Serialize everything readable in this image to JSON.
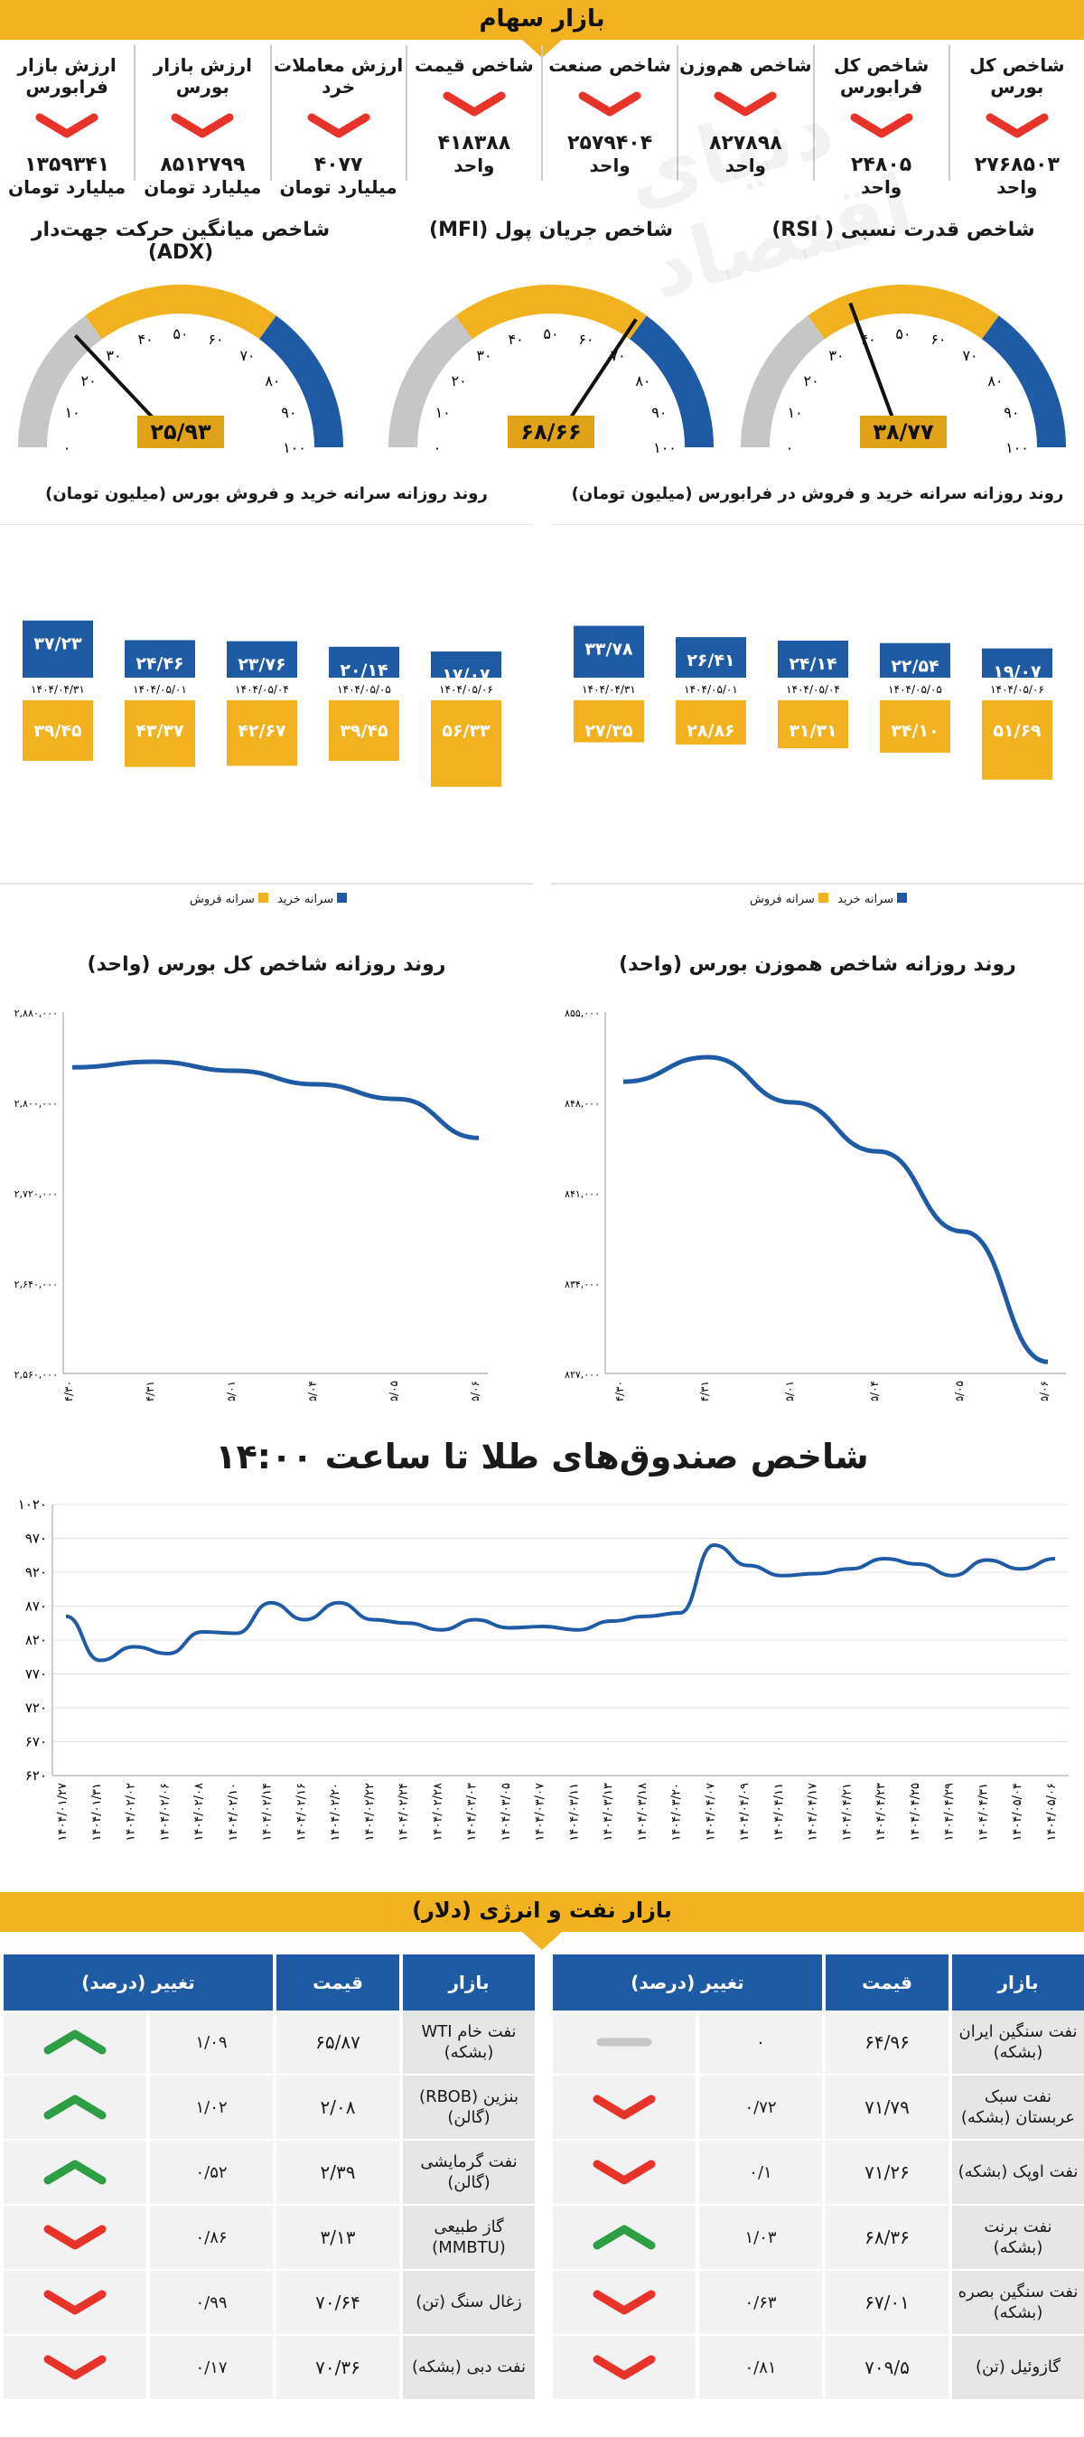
{
  "header": {
    "title": "بازار سهام"
  },
  "metrics": [
    {
      "label": "شاخص کل بورس",
      "value": "۲۷۶۸۵۰۳",
      "unit": "واحد"
    },
    {
      "label": "شاخص کل فرابورس",
      "value": "۲۴۸۰۵",
      "unit": "واحد"
    },
    {
      "label": "شاخص هم‌وزن",
      "value": "۸۲۷۸۹۸",
      "unit": "واحد"
    },
    {
      "label": "شاخص صنعت",
      "value": "۲۵۷۹۴۰۴",
      "unit": "واحد"
    },
    {
      "label": "شاخص قیمت",
      "value": "۴۱۸۳۸۸",
      "unit": "واحد"
    },
    {
      "label": "ارزش معاملات خرد",
      "value": "۴۰۷۷",
      "unit": "میلیارد تومان"
    },
    {
      "label": "ارزش بازار بورس",
      "value": "۸۵۱۲۷۹۹",
      "unit": "میلیارد تومان"
    },
    {
      "label": "ارزش بازار فرابورس",
      "value": "۱۳۵۹۳۴۱",
      "unit": "میلیارد تومان"
    }
  ],
  "colors": {
    "yellow": "#f2b21f",
    "blue": "#1f5aa5",
    "red": "#e8332a",
    "green": "#2e9e45",
    "gray": "#c6c6c6"
  },
  "gauges": [
    {
      "title": "شاخص قدرت نسبی ( RSI)",
      "value": 38.77,
      "display": "۳۸/۷۷"
    },
    {
      "title": "شاخص جریان پول (MFI)",
      "value": 68.66,
      "display": "۶۸/۶۶"
    },
    {
      "title": "شاخص میانگین حرکت جهت‌دار (ADX)",
      "value": 25.93,
      "display": "۲۵/۹۳"
    }
  ],
  "gauge_ticks": [
    "۰",
    "۱۰",
    "۲۰",
    "۳۰",
    "۴۰",
    "۵۰",
    "۶۰",
    "۷۰",
    "۸۰",
    "۹۰",
    "۱۰۰"
  ],
  "chart_data": [
    {
      "type": "bar",
      "title": "روند روزانه سرانه خرید و فروش بورس (میلیون تومان)",
      "categories": [
        "۱۴۰۴/۰۴/۳۱",
        "۱۴۰۴/۰۵/۰۱",
        "۱۴۰۴/۰۵/۰۴",
        "۱۴۰۴/۰۵/۰۵",
        "۱۴۰۴/۰۵/۰۶"
      ],
      "series": [
        {
          "name": "سرانه خرید",
          "values": [
            37.23,
            24.46,
            23.76,
            20.14,
            17.07
          ],
          "labels": [
            "۳۷/۲۳",
            "۲۴/۴۶",
            "۲۳/۷۶",
            "۲۰/۱۴",
            "۱۷/۰۷"
          ]
        },
        {
          "name": "سرانه فروش",
          "values": [
            39.45,
            43.37,
            42.67,
            39.45,
            56.33
          ],
          "labels": [
            "۳۹/۴۵",
            "۴۳/۳۷",
            "۴۲/۶۷",
            "۳۹/۴۵",
            "۵۶/۳۳"
          ]
        }
      ]
    },
    {
      "type": "bar",
      "title": "روند روزانه سرانه خرید و فروش در فرابورس (میلیون تومان)",
      "categories": [
        "۱۴۰۴/۰۴/۳۱",
        "۱۴۰۴/۰۵/۰۱",
        "۱۴۰۴/۰۵/۰۴",
        "۱۴۰۴/۰۵/۰۵",
        "۱۴۰۴/۰۵/۰۶"
      ],
      "series": [
        {
          "name": "سرانه خرید",
          "values": [
            33.78,
            26.41,
            24.14,
            22.54,
            19.07
          ],
          "labels": [
            "۳۳/۷۸",
            "۲۶/۴۱",
            "۲۴/۱۴",
            "۲۲/۵۴",
            "۱۹/۰۷"
          ]
        },
        {
          "name": "سرانه فروش",
          "values": [
            27.35,
            28.86,
            31.31,
            34.1,
            51.69
          ],
          "labels": [
            "۲۷/۳۵",
            "۲۸/۸۶",
            "۳۱/۳۱",
            "۳۴/۱۰",
            "۵۱/۶۹"
          ]
        }
      ]
    },
    {
      "type": "line",
      "title": "روند روزانه شاخص کل بورس (واحد)",
      "x": [
        "۱۴۰۴/۰۴/۳۰",
        "۱۴۰۴/۰۴/۳۱",
        "۱۴۰۴/۰۵/۰۱",
        "۱۴۰۴/۰۵/۰۴",
        "۱۴۰۴/۰۵/۰۵",
        "۱۴۰۴/۰۵/۰۶"
      ],
      "y": [
        2831000,
        2836000,
        2828000,
        2816000,
        2803000,
        2768503
      ],
      "ylim": [
        2560000,
        2880000
      ],
      "yticks": [
        "۲,۵۶۰,۰۰۰",
        "۲,۶۴۰,۰۰۰",
        "۲,۷۲۰,۰۰۰",
        "۲,۸۰۰,۰۰۰",
        "۲,۸۸۰,۰۰۰"
      ]
    },
    {
      "type": "line",
      "title": "روند روزانه شاخص هموزن بورس (واحد)",
      "x": [
        "۱۴۰۴/۰۴/۳۰",
        "۱۴۰۴/۰۴/۳۱",
        "۱۴۰۴/۰۵/۰۱",
        "۱۴۰۴/۰۵/۰۴",
        "۱۴۰۴/۰۵/۰۵",
        "۱۴۰۴/۰۵/۰۶"
      ],
      "y": [
        849600,
        851500,
        848000,
        844200,
        838000,
        827898
      ],
      "ylim": [
        827000,
        855000
      ],
      "yticks": [
        "۸۲۷,۰۰۰",
        "۸۳۴,۰۰۰",
        "۸۴۱,۰۰۰",
        "۸۴۸,۰۰۰",
        "۸۵۵,۰۰۰"
      ]
    },
    {
      "type": "line",
      "title": "شاخص صندوق‌های طلا تا ساعت ۱۴:۰۰",
      "x": [
        "۱۴۰۴/۰۱/۲۷",
        "۱۴۰۴/۰۱/۳۱",
        "۱۴۰۴/۰۲/۰۲",
        "۱۴۰۴/۰۲/۰۶",
        "۱۴۰۴/۰۲/۰۸",
        "۱۴۰۴/۰۲/۱۰",
        "۱۴۰۴/۰۲/۱۴",
        "۱۴۰۴/۰۲/۱۶",
        "۱۴۰۴/۰۲/۲۰",
        "۱۴۰۴/۰۲/۲۲",
        "۱۴۰۴/۰۲/۲۴",
        "۱۴۰۴/۰۲/۲۸",
        "۱۴۰۴/۰۳/۰۳",
        "۱۴۰۴/۰۳/۰۵",
        "۱۴۰۴/۰۳/۰۷",
        "۱۴۰۴/۰۳/۱۱",
        "۱۴۰۴/۰۳/۱۳",
        "۱۴۰۴/۰۳/۱۸",
        "۱۴۰۴/۰۳/۲۰",
        "۱۴۰۴/۰۴/۰۷",
        "۱۴۰۴/۰۴/۰۹",
        "۱۴۰۴/۰۴/۱۱",
        "۱۴۰۴/۰۴/۱۷",
        "۱۴۰۴/۰۴/۲۱",
        "۱۴۰۴/۰۴/۲۳",
        "۱۴۰۴/۰۴/۲۵",
        "۱۴۰۴/۰۴/۲۹",
        "۱۴۰۴/۰۴/۳۱",
        "۱۴۰۴/۰۵/۰۴",
        "۱۴۰۴/۰۵/۰۶"
      ],
      "y": [
        855,
        790,
        810,
        800,
        832,
        830,
        875,
        850,
        875,
        850,
        845,
        835,
        850,
        838,
        840,
        835,
        848,
        855,
        860,
        960,
        930,
        915,
        918,
        925,
        940,
        932,
        915,
        938,
        925,
        940
      ],
      "ylim": [
        620,
        1020
      ],
      "yticks": [
        "۶۲۰",
        "۶۷۰",
        "۷۲۰",
        "۷۷۰",
        "۸۲۰",
        "۸۷۰",
        "۹۲۰",
        "۹۷۰",
        "۱۰۲۰"
      ]
    }
  ],
  "energy": {
    "title": "بازار نفت و انرژی (دلار)",
    "columns": [
      "بازار",
      "قیمت",
      "تغییر (درصد)"
    ],
    "right": [
      {
        "name": "نفت سنگین ایران (بشکه)",
        "price": "۶۴/۹۶",
        "change": "۰",
        "dir": "flat"
      },
      {
        "name": "نفت سبک عربستان (بشکه)",
        "price": "۷۱/۷۹",
        "change": "۰/۷۲",
        "dir": "down"
      },
      {
        "name": "نفت اوپک (بشکه)",
        "price": "۷۱/۲۶",
        "change": "۰/۱",
        "dir": "down"
      },
      {
        "name": "نفت برنت (بشکه)",
        "price": "۶۸/۳۶",
        "change": "۱/۰۳",
        "dir": "up"
      },
      {
        "name": "نفت سنگین بصره (بشکه)",
        "price": "۶۷/۰۱",
        "change": "۰/۶۳",
        "dir": "down"
      },
      {
        "name": "گازوئیل (تن)",
        "price": "۷۰۹/۵",
        "change": "۰/۸۱",
        "dir": "down"
      }
    ],
    "left": [
      {
        "name": "نفت خام WTI (بشکه)",
        "price": "۶۵/۸۷",
        "change": "۱/۰۹",
        "dir": "up"
      },
      {
        "name": "بنزین (RBOB) (گالن)",
        "price": "۲/۰۸",
        "change": "۱/۰۲",
        "dir": "up"
      },
      {
        "name": "نفت گرمایشی (گالن)",
        "price": "۲/۳۹",
        "change": "۰/۵۲",
        "dir": "up"
      },
      {
        "name": "گاز طبیعی (MMBTU)",
        "price": "۳/۱۳",
        "change": "۰/۸۶",
        "dir": "down"
      },
      {
        "name": "زغال سنگ (تن)",
        "price": "۷۰/۶۴",
        "change": "۰/۹۹",
        "dir": "down"
      },
      {
        "name": "نفت دبی (بشکه)",
        "price": "۷۰/۳۶",
        "change": "۰/۱۷",
        "dir": "down"
      }
    ]
  }
}
